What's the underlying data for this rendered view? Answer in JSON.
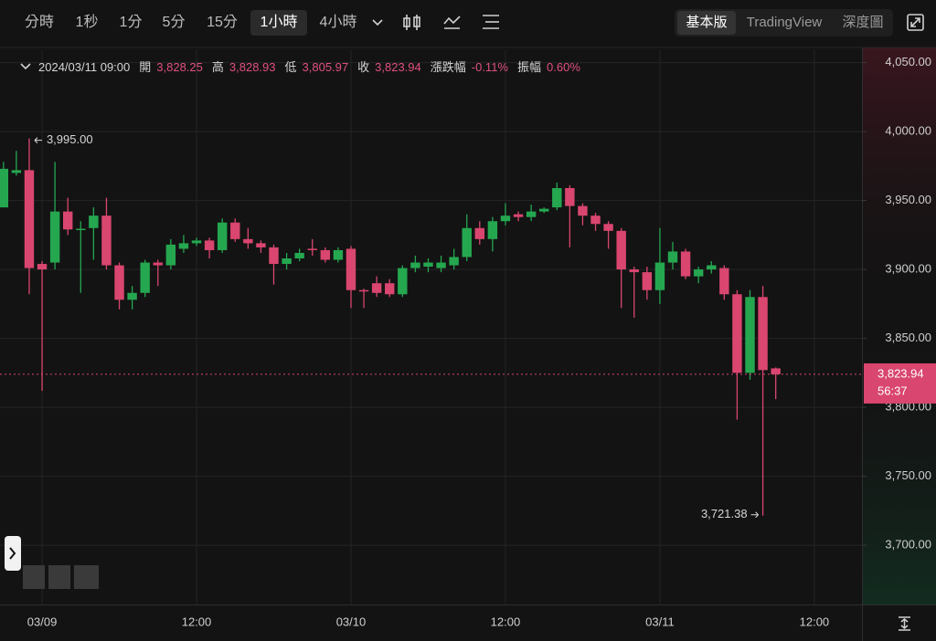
{
  "toolbar": {
    "intervals": [
      "分時",
      "1秒",
      "1分",
      "5分",
      "15分",
      "1小時",
      "4小時"
    ],
    "selected_interval": 5,
    "views": [
      "基本版",
      "TradingView",
      "深度圖"
    ],
    "selected_view": 0
  },
  "header": {
    "time": "2024/03/11 09:00",
    "fields": [
      {
        "label": "開",
        "value": "3,828.25"
      },
      {
        "label": "高",
        "value": "3,828.93"
      },
      {
        "label": "低",
        "value": "3,805.97"
      },
      {
        "label": "收",
        "value": "3,823.94"
      },
      {
        "label": "漲跌幅",
        "value": "-0.11%"
      },
      {
        "label": "振幅",
        "value": "0.60%"
      }
    ]
  },
  "chart_data": {
    "type": "candlestick",
    "x": [
      -3,
      -2,
      -1,
      0,
      1,
      2,
      3,
      4,
      5,
      6,
      7,
      8,
      9,
      10,
      11,
      12,
      13,
      14,
      15,
      16,
      17,
      18,
      19,
      20,
      21,
      22,
      23,
      24,
      25,
      26,
      27,
      28,
      29,
      30,
      31,
      32,
      33,
      34,
      35,
      36,
      37,
      38,
      39,
      40,
      41,
      42,
      43,
      44,
      45,
      46,
      47,
      48,
      49,
      50,
      51,
      52,
      53,
      54,
      55,
      56,
      57
    ],
    "open": [
      3945,
      3970,
      3972,
      3904,
      3905,
      3942,
      3929,
      3930,
      3939,
      3903,
      3878,
      3883,
      3905,
      3903,
      3915,
      3919,
      3921,
      3914,
      3934,
      3922,
      3919,
      3916,
      3904,
      3908,
      3915,
      3914,
      3907,
      3915,
      3885,
      3890,
      3890,
      3882,
      3901,
      3902,
      3901,
      3903,
      3909,
      3930,
      3922,
      3935,
      3940,
      3938,
      3942,
      3945,
      3959,
      3946,
      3939,
      3933,
      3928,
      3900,
      3898,
      3885,
      3905,
      3913,
      3895,
      3900,
      3901,
      3882,
      3825,
      3880,
      3828.25
    ],
    "high": [
      3978,
      3986,
      3995,
      3906,
      3978,
      3952,
      3935,
      3945,
      3952,
      3905,
      3888,
      3907,
      3907,
      3922,
      3925,
      3923,
      3923,
      3937,
      3937,
      3930,
      3921,
      3918,
      3912,
      3915,
      3922,
      3916,
      3916,
      3917,
      3886,
      3895,
      3893,
      3903,
      3910,
      3908,
      3910,
      3915,
      3940,
      3935,
      3938,
      3948,
      3942,
      3947,
      3945,
      3963,
      3961,
      3948,
      3941,
      3935,
      3930,
      3902,
      3902,
      3930,
      3920,
      3915,
      3902,
      3906,
      3903,
      3885,
      3885,
      3888,
      3828.93
    ],
    "low": [
      3945,
      3968,
      3882,
      3812,
      3900,
      3925,
      3883,
      3907,
      3900,
      3871,
      3871,
      3880,
      3888,
      3900,
      3912,
      3917,
      3908,
      3912,
      3920,
      3915,
      3912,
      3889,
      3900,
      3906,
      3910,
      3905,
      3905,
      3872,
      3872,
      3880,
      3880,
      3880,
      3898,
      3898,
      3898,
      3900,
      3906,
      3918,
      3913,
      3932,
      3935,
      3935,
      3941,
      3943,
      3916,
      3932,
      3928,
      3915,
      3872,
      3865,
      3878,
      3875,
      3900,
      3893,
      3890,
      3897,
      3878,
      3791,
      3820,
      3721.38,
      3805.97
    ],
    "close": [
      3973,
      3972,
      3901,
      3900,
      3942,
      3929,
      3929.5,
      3939,
      3903,
      3878,
      3883,
      3905,
      3903,
      3918,
      3919,
      3921,
      3914,
      3934,
      3922,
      3919,
      3916,
      3904,
      3908,
      3912,
      3914,
      3907,
      3914,
      3885,
      3884,
      3883,
      3882,
      3901,
      3905,
      3905,
      3905,
      3909,
      3930,
      3922,
      3935,
      3939,
      3938,
      3942,
      3944,
      3959,
      3946,
      3939,
      3933,
      3928,
      3900,
      3898,
      3885,
      3905,
      3913,
      3895,
      3900,
      3903,
      3882,
      3825,
      3880,
      3827,
      3823.94
    ],
    "up_color": "#25a750",
    "down_color": "#d9466f",
    "xlim": [
      -3.27,
      63.7
    ],
    "xticks": [
      {
        "value": 0,
        "label": "03/09"
      },
      {
        "value": 12,
        "label": "12:00"
      },
      {
        "value": 24,
        "label": "03/10"
      },
      {
        "value": 36,
        "label": "12:00"
      },
      {
        "value": 48,
        "label": "03/11"
      },
      {
        "value": 60,
        "label": "12:00"
      }
    ],
    "ylim": [
      3657,
      4059
    ],
    "yticks": [
      {
        "value": 3700,
        "label": "3,700.00"
      },
      {
        "value": 3750,
        "label": "3,750.00"
      },
      {
        "value": 3800,
        "label": "3,800.00"
      },
      {
        "value": 3850,
        "label": "3,850.00"
      },
      {
        "value": 3900,
        "label": "3,900.00"
      },
      {
        "value": 3950,
        "label": "3,950.00"
      },
      {
        "value": 4000,
        "label": "4,000.00"
      },
      {
        "value": 4050,
        "label": "4,050.00"
      }
    ],
    "grid": true,
    "high_label": "3,995.00",
    "low_label": "3,721.38",
    "price_tag": {
      "price": "3,823.94",
      "countdown": "56:37"
    }
  }
}
